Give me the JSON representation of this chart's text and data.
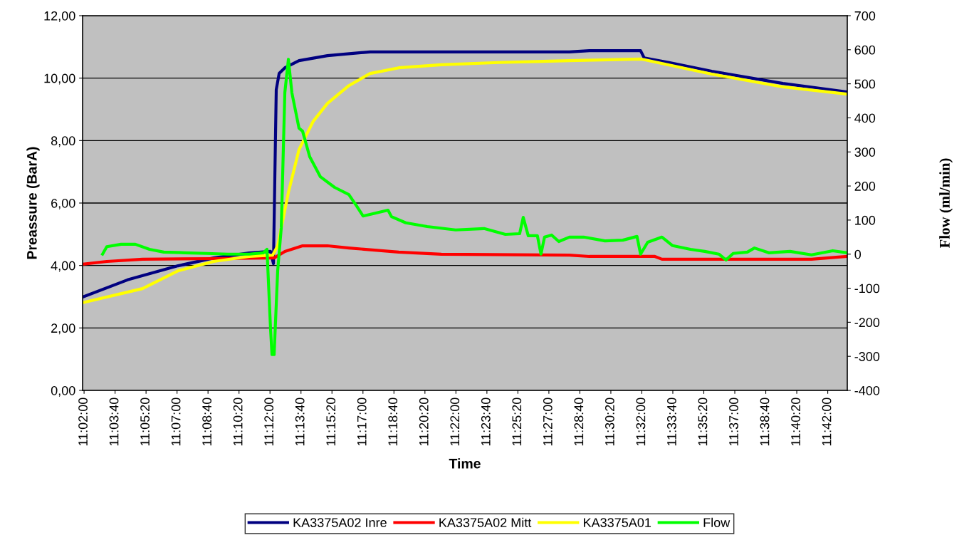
{
  "chart_data": {
    "type": "line",
    "xlabel": "Time",
    "ylabel": "Preassure (BarA)",
    "y2label": "Flow (ml/min)",
    "xlim": [
      11.032,
      11.7175
    ],
    "xticks": [
      {
        "value": 11.033333,
        "label": "11:02:00"
      },
      {
        "value": 11.061111,
        "label": "11:03:40"
      },
      {
        "value": 11.088889,
        "label": "11:05:20"
      },
      {
        "value": 11.116667,
        "label": "11:07:00"
      },
      {
        "value": 11.144444,
        "label": "11:08:40"
      },
      {
        "value": 11.172222,
        "label": "11:10:20"
      },
      {
        "value": 11.2,
        "label": "11:12:00"
      },
      {
        "value": 11.227778,
        "label": "11:13:40"
      },
      {
        "value": 11.255556,
        "label": "11:15:20"
      },
      {
        "value": 11.283333,
        "label": "11:17:00"
      },
      {
        "value": 11.311111,
        "label": "11:18:40"
      },
      {
        "value": 11.338889,
        "label": "11:20:20"
      },
      {
        "value": 11.366667,
        "label": "11:22:00"
      },
      {
        "value": 11.394444,
        "label": "11:23:40"
      },
      {
        "value": 11.422222,
        "label": "11:25:20"
      },
      {
        "value": 11.45,
        "label": "11:27:00"
      },
      {
        "value": 11.477778,
        "label": "11:28:40"
      },
      {
        "value": 11.505556,
        "label": "11:30:20"
      },
      {
        "value": 11.533333,
        "label": "11:32:00"
      },
      {
        "value": 11.561111,
        "label": "11:33:40"
      },
      {
        "value": 11.588889,
        "label": "11:35:20"
      },
      {
        "value": 11.616667,
        "label": "11:37:00"
      },
      {
        "value": 11.644444,
        "label": "11:38:40"
      },
      {
        "value": 11.672222,
        "label": "11:40:20"
      },
      {
        "value": 11.7,
        "label": "11:42:00"
      }
    ],
    "ylim": [
      0,
      12
    ],
    "yticks": [
      {
        "value": 0,
        "label": "0,00"
      },
      {
        "value": 2,
        "label": "2,00"
      },
      {
        "value": 4,
        "label": "4,00"
      },
      {
        "value": 6,
        "label": "6,00"
      },
      {
        "value": 8,
        "label": "8,00"
      },
      {
        "value": 10,
        "label": "10,00"
      },
      {
        "value": 12,
        "label": "12,00"
      }
    ],
    "y2lim": [
      -400,
      700
    ],
    "y2ticks": [
      -400,
      -300,
      -200,
      -100,
      0,
      100,
      200,
      300,
      400,
      500,
      600,
      700
    ],
    "grid": "y",
    "legend": "bottom",
    "marker": "none",
    "line_style": "solid",
    "series": [
      {
        "name": "KA3375A02 Inre",
        "color": "#000080",
        "x": [
          11.0321,
          11.0723,
          11.1176,
          11.1495,
          11.1814,
          11.2005,
          11.2031,
          11.2056,
          11.2082,
          11.2133,
          11.226,
          11.2515,
          11.2898,
          11.4684,
          11.4863,
          11.5322,
          11.5354,
          11.5577,
          11.596,
          11.6598,
          11.7173
        ],
        "values": [
          2.99,
          3.54,
          3.99,
          4.24,
          4.4,
          4.45,
          4.06,
          9.63,
          10.15,
          10.33,
          10.56,
          10.72,
          10.84,
          10.84,
          10.88,
          10.88,
          10.65,
          10.5,
          10.22,
          9.83,
          9.56
        ]
      },
      {
        "name": "KA3375A02 Mitt",
        "color": "#ff0000",
        "x": [
          11.0321,
          11.0537,
          11.0857,
          11.1495,
          11.2005,
          11.2037,
          11.2133,
          11.2292,
          11.2515,
          11.2707,
          11.3153,
          11.3536,
          11.4684,
          11.4863,
          11.545,
          11.5514,
          11.6854,
          11.7173
        ],
        "values": [
          4.04,
          4.13,
          4.2,
          4.22,
          4.24,
          4.24,
          4.45,
          4.63,
          4.63,
          4.56,
          4.43,
          4.36,
          4.33,
          4.29,
          4.29,
          4.2,
          4.2,
          4.29
        ]
      },
      {
        "name": "KA3375A01",
        "color": "#ffff00",
        "x": [
          11.0321,
          11.0857,
          11.1176,
          11.1495,
          11.1814,
          11.2024,
          11.2069,
          11.2101,
          11.2165,
          11.226,
          11.2388,
          11.2515,
          11.2707,
          11.2898,
          11.3153,
          11.3536,
          11.4047,
          11.4684,
          11.5322,
          11.5354,
          11.596,
          11.6598,
          11.7173
        ],
        "values": [
          2.81,
          3.26,
          3.83,
          4.13,
          4.29,
          4.33,
          4.63,
          5.2,
          6.34,
          7.71,
          8.62,
          9.19,
          9.76,
          10.15,
          10.33,
          10.43,
          10.5,
          10.56,
          10.61,
          10.59,
          10.13,
          9.72,
          9.49
        ]
      },
      {
        "name": "Flow",
        "color": "#00ff00",
        "axis": "y2",
        "x": [
          11.0499,
          11.0537,
          11.0665,
          11.0793,
          11.092,
          11.1048,
          11.1239,
          11.1431,
          11.1622,
          11.1814,
          11.1941,
          11.1973,
          11.2005,
          11.2018,
          11.2037,
          11.2069,
          11.2101,
          11.2133,
          11.2165,
          11.2196,
          11.226,
          11.2292,
          11.2356,
          11.2452,
          11.2579,
          11.2707,
          11.2771,
          11.2834,
          11.293,
          11.3058,
          11.3089,
          11.3217,
          11.3409,
          11.3664,
          11.3919,
          11.411,
          11.4238,
          11.427,
          11.4315,
          11.4397,
          11.4429,
          11.4461,
          11.4525,
          11.4589,
          11.4684,
          11.4812,
          11.5003,
          11.5163,
          11.529,
          11.5322,
          11.5386,
          11.5514,
          11.5609,
          11.5769,
          11.5897,
          11.6024,
          11.6088,
          11.6152,
          11.6279,
          11.6343,
          11.6471,
          11.6662,
          11.6854,
          11.7045,
          11.7173
        ],
        "values": [
          0,
          22,
          29,
          29,
          14,
          6,
          4,
          2,
          0,
          0,
          4,
          14,
          -220,
          -295,
          -295,
          -48,
          77,
          474,
          572,
          474,
          370,
          361,
          286,
          227,
          196,
          175,
          144,
          112,
          119,
          129,
          110,
          92,
          81,
          71,
          75,
          58,
          60,
          108,
          54,
          54,
          0,
          50,
          56,
          37,
          50,
          50,
          39,
          41,
          52,
          0,
          35,
          50,
          25,
          14,
          8,
          0,
          -17,
          2,
          6,
          18,
          4,
          8,
          -2,
          10,
          4
        ]
      }
    ]
  }
}
